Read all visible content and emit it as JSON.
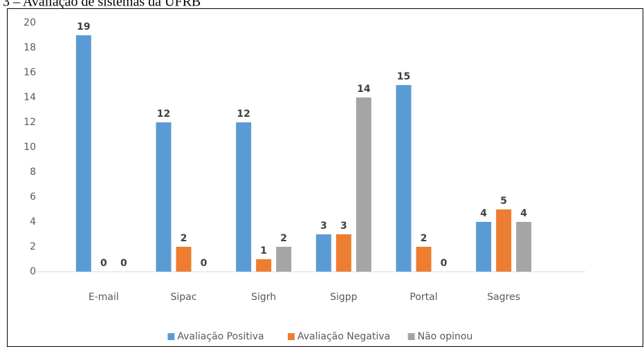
{
  "chart_data": {
    "type": "bar",
    "title": "3 – Avaliação de sistemas da UFRB",
    "categories": [
      "E-mail",
      "Sipac",
      "Sigrh",
      "Sigpp",
      "Portal",
      "Sagres"
    ],
    "series": [
      {
        "name": "Avaliação Positiva",
        "color": "#5b9bd5",
        "values": [
          19,
          12,
          12,
          3,
          15,
          4
        ]
      },
      {
        "name": "Avaliação Negativa",
        "color": "#ed7d31",
        "values": [
          0,
          2,
          1,
          3,
          2,
          5
        ]
      },
      {
        "name": "Não opinou",
        "color": "#a5a5a5",
        "values": [
          0,
          0,
          2,
          14,
          0,
          4
        ]
      }
    ],
    "ylim": [
      0,
      20
    ],
    "yticks": [
      0,
      2,
      4,
      6,
      8,
      10,
      12,
      14,
      16,
      18,
      20
    ],
    "grid": false,
    "legend": "bottom"
  }
}
